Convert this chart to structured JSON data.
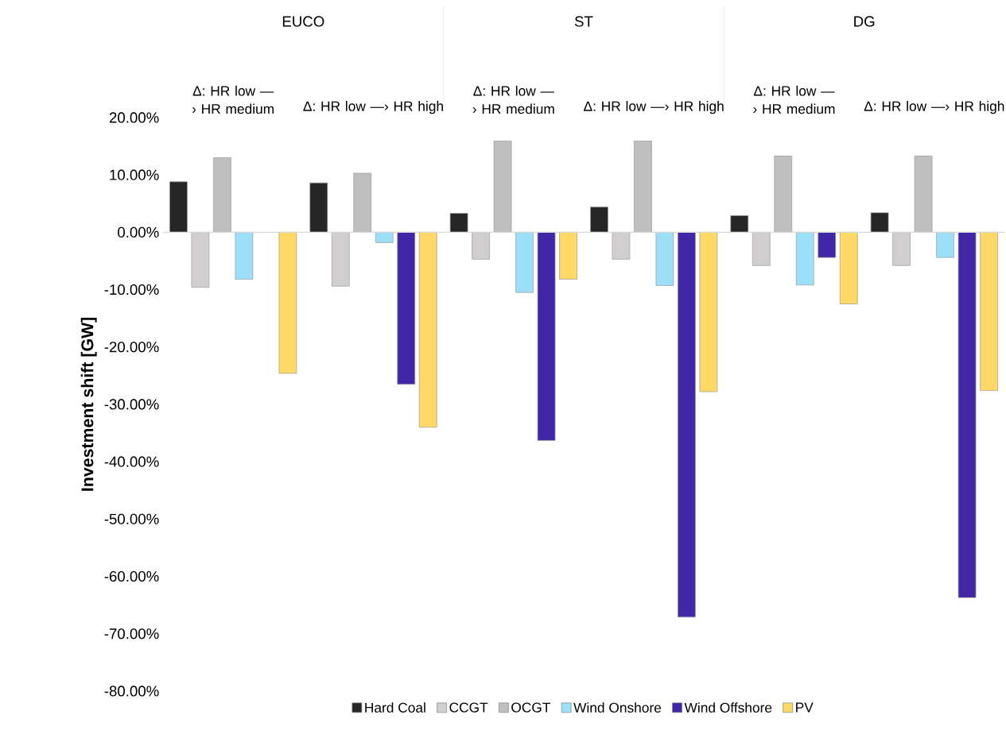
{
  "chart_data": {
    "type": "bar",
    "ylabel": "Investment shift [GW]",
    "categories": [
      "Δ: HR low —› HR medium",
      "Δ: HR low —› HR high",
      "Δ: HR low —› HR medium",
      "Δ: HR low —› HR high",
      "Δ: HR low —› HR medium",
      "Δ: HR low —› HR high"
    ],
    "annotations": [
      "EUCO",
      "ST",
      "DG"
    ],
    "series": [
      {
        "name": "Hard Coal",
        "color": "#262626",
        "values": [
          8.8,
          8.6,
          3.3,
          4.4,
          2.9,
          3.4
        ]
      },
      {
        "name": "CCGT",
        "color": "#d0cece",
        "values": [
          -9.6,
          -9.4,
          -4.7,
          -4.7,
          -5.8,
          -5.8
        ]
      },
      {
        "name": "OCGT",
        "color": "#bfbfbf",
        "values": [
          13.0,
          10.3,
          15.9,
          15.9,
          13.3,
          13.3
        ]
      },
      {
        "name": "Wind Onshore",
        "color": "#9be0f8",
        "values": [
          -8.2,
          -1.8,
          -10.5,
          -9.3,
          -9.2,
          -4.4
        ]
      },
      {
        "name": "Wind Offshore",
        "color": "#4226a8",
        "values": [
          null,
          -26.5,
          -36.3,
          -67.1,
          -4.4,
          -63.7
        ]
      },
      {
        "name": "PV",
        "color": "#fed966",
        "values": [
          -24.6,
          -34.0,
          -8.2,
          -27.8,
          -12.5,
          -27.6
        ]
      }
    ],
    "ylim": [
      -80,
      20
    ],
    "yticks": [
      {
        "value": -80,
        "label": "-80.00%"
      },
      {
        "value": -70,
        "label": "-70.00%"
      },
      {
        "value": -60,
        "label": "-60.00%"
      },
      {
        "value": -50,
        "label": "-50.00%"
      },
      {
        "value": -40,
        "label": "-40.00%"
      },
      {
        "value": -30,
        "label": "-30.00%"
      },
      {
        "value": -20,
        "label": "-20.00%"
      },
      {
        "value": -10,
        "label": "-10.00%"
      },
      {
        "value": 0,
        "label": "0.00%"
      },
      {
        "value": 10,
        "label": "10.00%"
      },
      {
        "value": 20,
        "label": "20.00%"
      }
    ],
    "legend": "bottom"
  }
}
